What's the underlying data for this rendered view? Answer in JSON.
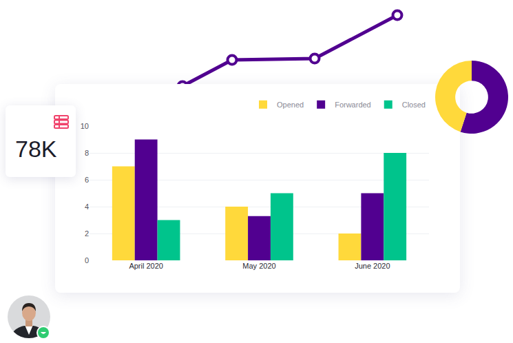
{
  "kpi": {
    "text": "78K"
  },
  "chart_data": [
    {
      "type": "line",
      "x": [
        0.4,
        1,
        2,
        3
      ],
      "values": [
        1,
        2.9,
        3,
        6.15
      ],
      "xlim": [
        0,
        3.1
      ],
      "ylim": [
        0,
        6.5
      ],
      "color": "#510090",
      "marker": "circle",
      "tick_labels": false
    },
    {
      "type": "bar",
      "categories": [
        "April 2020",
        "May 2020",
        "June 2020"
      ],
      "series": [
        {
          "name": "Opened",
          "color": "#ffd93b",
          "values": [
            7,
            4,
            2
          ]
        },
        {
          "name": "Forwarded",
          "color": "#510090",
          "values": [
            9,
            3.3,
            5
          ]
        },
        {
          "name": "Closed",
          "color": "#00c48c",
          "values": [
            3,
            5,
            8
          ]
        }
      ],
      "ylim": [
        0,
        10
      ],
      "yticks": [
        0,
        2,
        4,
        6,
        8,
        10
      ],
      "grid": true,
      "legend": "top right"
    },
    {
      "type": "pie",
      "values": [
        55,
        45
      ],
      "colors": [
        "#510090",
        "#ffd93b"
      ]
    }
  ]
}
